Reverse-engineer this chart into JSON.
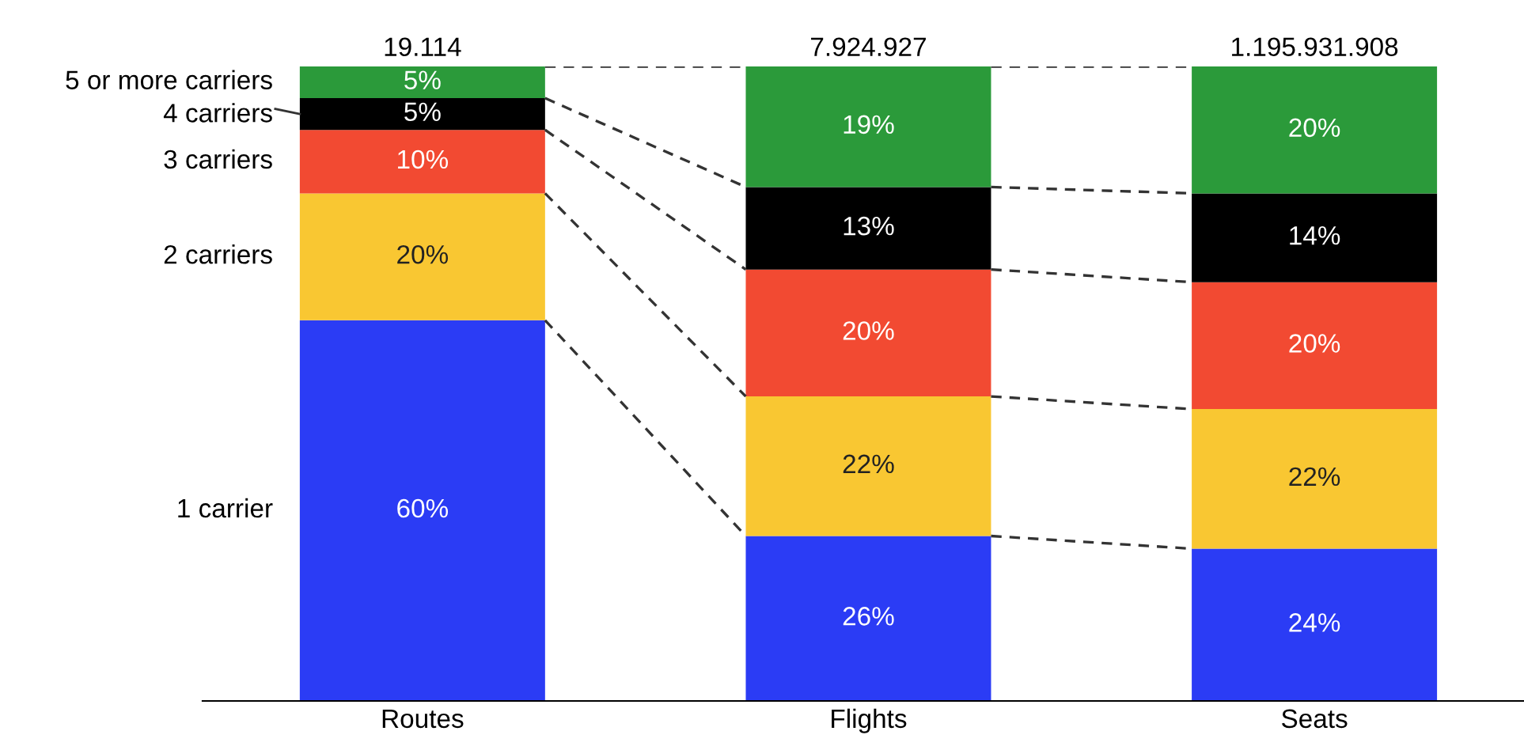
{
  "chart_data": {
    "type": "bar",
    "stacked": true,
    "categories": [
      "Routes",
      "Flights",
      "Seats"
    ],
    "series": [
      {
        "name": "1 carrier",
        "color": "#2b3cf5",
        "values": [
          60,
          26,
          24
        ],
        "value_labels": [
          "60%",
          "26%",
          "24%"
        ]
      },
      {
        "name": "2 carriers",
        "color": "#f9c732",
        "values": [
          20,
          22,
          22
        ],
        "value_labels": [
          "20%",
          "22%",
          "22%"
        ]
      },
      {
        "name": "3 carriers",
        "color": "#f24a32",
        "values": [
          10,
          20,
          20
        ],
        "value_labels": [
          "10%",
          "20%",
          "20%"
        ]
      },
      {
        "name": "4 carriers",
        "color": "#000000",
        "values": [
          5,
          13,
          14
        ],
        "value_labels": [
          "5%",
          "13%",
          "14%"
        ]
      },
      {
        "name": "5 or more carriers",
        "color": "#2b9a3a",
        "values": [
          5,
          19,
          20
        ],
        "value_labels": [
          "5%",
          "19%",
          "20%"
        ]
      }
    ],
    "annotations": [
      {
        "text": "19.114",
        "x": "Routes",
        "y": 100
      },
      {
        "text": "7.924.927",
        "x": "Flights",
        "y": 100
      },
      {
        "text": "1.195.931.908",
        "x": "Seats",
        "y": 100
      }
    ],
    "legend": false,
    "grid": false
  }
}
